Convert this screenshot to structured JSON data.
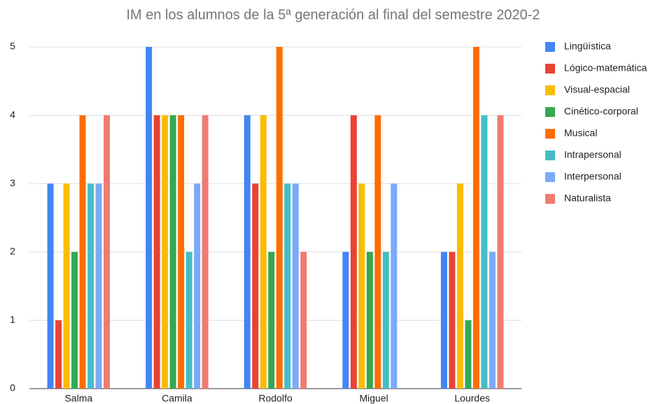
{
  "chart_data": {
    "type": "bar",
    "title": "IM en los alumnos de la 5ª generación  al final del semestre 2020-2",
    "categories": [
      "Salma",
      "Camila",
      "Rodolfo",
      "Miguel",
      "Lourdes"
    ],
    "series": [
      {
        "name": "Lingüística",
        "color": "#4285f4",
        "values": [
          3,
          5,
          4,
          2,
          2
        ]
      },
      {
        "name": "Lógico-matemática",
        "color": "#ea4335",
        "values": [
          1,
          4,
          3,
          4,
          2
        ]
      },
      {
        "name": "Visual-espacial",
        "color": "#fbbc04",
        "values": [
          3,
          4,
          4,
          3,
          3
        ]
      },
      {
        "name": "Cinético-corporal",
        "color": "#34a853",
        "values": [
          2,
          4,
          2,
          2,
          1
        ]
      },
      {
        "name": "Musical",
        "color": "#ff6d01",
        "values": [
          4,
          4,
          5,
          4,
          5
        ]
      },
      {
        "name": "Intrapersonal",
        "color": "#46bdc6",
        "values": [
          3,
          2,
          3,
          2,
          4
        ]
      },
      {
        "name": "Interpersonal",
        "color": "#7baaf7",
        "values": [
          3,
          3,
          3,
          3,
          2
        ]
      },
      {
        "name": "Naturalista",
        "color": "#f07b72",
        "values": [
          4,
          4,
          2,
          0,
          4
        ]
      }
    ],
    "ylim": [
      0,
      5
    ],
    "yticks": [
      0,
      1,
      2,
      3,
      4,
      5
    ],
    "grid": true,
    "legend": "right"
  }
}
